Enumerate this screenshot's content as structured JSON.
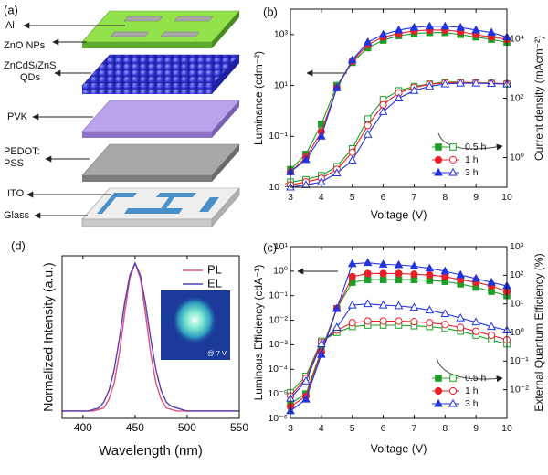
{
  "diagram": {
    "panel_label": "(a)",
    "layers": [
      [
        "Al"
      ],
      [
        "ZnO NPs"
      ],
      [
        "ZnCdS/ZnS",
        "QDs"
      ],
      [
        "PVK"
      ],
      [
        "PEDOT:",
        "PSS"
      ],
      [
        "ITO"
      ],
      [
        "Glass"
      ]
    ]
  },
  "chart_data": [
    {
      "type": "line",
      "panel_label": "(b)",
      "xlabel": "Voltage (V)",
      "ylabel": "Luminance (cdm⁻²)",
      "y2label": "Current density (mAcm⁻²)",
      "x": [
        3,
        3.5,
        4,
        4.5,
        5,
        5.5,
        6,
        6.5,
        7,
        7.5,
        8,
        8.5,
        9,
        9.5,
        10
      ],
      "xlim": [
        3,
        10
      ],
      "xticks": [
        3,
        4,
        5,
        6,
        7,
        8,
        9,
        10
      ],
      "yscale": "log",
      "ylim": [
        0.001,
        10000
      ],
      "yticks": [
        {
          "value": 0.001,
          "label": "10⁻³"
        },
        {
          "value": 0.1,
          "label": "10⁻¹"
        },
        {
          "value": 10,
          "label": "10¹"
        },
        {
          "value": 1000,
          "label": "10³"
        }
      ],
      "y2scale": "log",
      "y2lim": [
        0.1,
        100000
      ],
      "y2ticks": [
        {
          "value": 1,
          "label": "10⁰"
        },
        {
          "value": 100,
          "label": "10²"
        },
        {
          "value": 10000,
          "label": "10⁴"
        }
      ],
      "legend": "lower right",
      "series": [
        {
          "name": "0.5 h",
          "color": "#1e9e28",
          "marker": "square",
          "values": [
            0.005,
            0.02,
            0.3,
            10,
            80,
            300,
            600,
            900,
            1100,
            1200,
            1200,
            1000,
            800,
            650,
            500
          ],
          "y2_values": [
            0.15,
            0.18,
            0.25,
            0.5,
            2,
            20,
            90,
            180,
            250,
            300,
            350,
            350,
            330,
            320,
            300
          ]
        },
        {
          "name": "1 h",
          "color": "#e8202a",
          "marker": "circle",
          "values": [
            0.004,
            0.015,
            0.15,
            8,
            90,
            400,
            800,
            1100,
            1400,
            1500,
            1500,
            1300,
            1000,
            800,
            650
          ],
          "y2_values": [
            0.12,
            0.15,
            0.2,
            0.4,
            1.5,
            12,
            60,
            150,
            230,
            290,
            330,
            340,
            330,
            320,
            310
          ]
        },
        {
          "name": "3 h",
          "color": "#2233e0",
          "marker": "triangle",
          "values": [
            0.004,
            0.012,
            0.1,
            8,
            100,
            500,
            1000,
            1500,
            1900,
            2100,
            2100,
            1900,
            1500,
            1200,
            800
          ],
          "y2_values": [
            0.1,
            0.12,
            0.15,
            0.3,
            0.8,
            6,
            35,
            100,
            180,
            250,
            300,
            320,
            320,
            310,
            300
          ]
        }
      ]
    },
    {
      "type": "line",
      "panel_label": "(c)",
      "xlabel": "Voltage (V)",
      "ylabel": "Luminous Efficiency (cdA⁻¹)",
      "y2label": "External Quantum Efficiency (%)",
      "x": [
        3,
        3.5,
        4,
        4.5,
        5,
        5.5,
        6,
        6.5,
        7,
        7.5,
        8,
        8.5,
        9,
        9.5,
        10
      ],
      "xlim": [
        3,
        10
      ],
      "xticks": [
        3,
        4,
        5,
        6,
        7,
        8,
        9,
        10
      ],
      "yscale": "log",
      "ylim": [
        1e-06,
        10
      ],
      "yticks": [
        {
          "value": 1e-06,
          "label": "10⁻⁶"
        },
        {
          "value": 1e-05,
          "label": "10⁻⁵"
        },
        {
          "value": 0.0001,
          "label": "10⁻⁴"
        },
        {
          "value": 0.001,
          "label": "10⁻³"
        },
        {
          "value": 0.01,
          "label": "10⁻²"
        },
        {
          "value": 0.1,
          "label": "10⁻¹"
        },
        {
          "value": 1,
          "label": "10⁰"
        },
        {
          "value": 10,
          "label": "10¹"
        }
      ],
      "y2scale": "log",
      "y2lim": [
        0.001,
        1000
      ],
      "y2ticks": [
        {
          "value": 0.01,
          "label": "10⁻²"
        },
        {
          "value": 0.1,
          "label": "10⁻¹"
        },
        {
          "value": 1,
          "label": "10⁰"
        },
        {
          "value": 10,
          "label": "10¹"
        },
        {
          "value": 100,
          "label": "10²"
        },
        {
          "value": 1000,
          "label": "10³"
        }
      ],
      "legend": "lower right",
      "series": [
        {
          "name": "0.5 h",
          "color": "#1e9e28",
          "marker": "square",
          "values": [
            4e-06,
            1e-05,
            0.0006,
            0.03,
            0.35,
            0.45,
            0.45,
            0.45,
            0.45,
            0.42,
            0.38,
            0.3,
            0.22,
            0.15,
            0.1
          ],
          "y2_values": [
            0.008,
            0.03,
            0.5,
            1,
            1.6,
            1.8,
            1.8,
            1.8,
            1.7,
            1.6,
            1.4,
            1.1,
            0.8,
            0.55,
            0.4
          ]
        },
        {
          "name": "1 h",
          "color": "#e8202a",
          "marker": "circle",
          "values": [
            3e-06,
            8e-06,
            0.0005,
            0.03,
            0.6,
            0.8,
            0.8,
            0.8,
            0.75,
            0.7,
            0.6,
            0.45,
            0.35,
            0.25,
            0.15
          ],
          "y2_values": [
            0.006,
            0.025,
            0.45,
            1.2,
            2.2,
            2.5,
            2.5,
            2.5,
            2.4,
            2.2,
            1.9,
            1.5,
            1.1,
            0.8,
            0.55
          ]
        },
        {
          "name": "3 h",
          "color": "#2233e0",
          "marker": "triangle",
          "values": [
            2e-06,
            6e-06,
            0.0004,
            0.03,
            2,
            2.2,
            1.9,
            1.8,
            1.6,
            1.3,
            1,
            0.7,
            0.5,
            0.35,
            0.25
          ],
          "y2_values": [
            0.005,
            0.02,
            0.4,
            1.5,
            9,
            10,
            9,
            8.5,
            7.5,
            6,
            4.5,
            3.2,
            2.3,
            1.6,
            1.2
          ]
        }
      ]
    },
    {
      "type": "line",
      "panel_label": "(d)",
      "xlabel": "Wavelength (nm)",
      "ylabel": "Normalized Intensity (a.u.)",
      "inset_label": "@ 7 V",
      "x": [
        380,
        385,
        390,
        395,
        400,
        405,
        410,
        415,
        420,
        425,
        430,
        435,
        440,
        445,
        450,
        455,
        460,
        465,
        470,
        475,
        480,
        485,
        490,
        495,
        500,
        505,
        510,
        515,
        520,
        525,
        530,
        535,
        540,
        545,
        550
      ],
      "xlim": [
        380,
        550
      ],
      "xticks": [
        400,
        450,
        500,
        550
      ],
      "ylim": [
        -0.05,
        1.05
      ],
      "legend": "upper right",
      "series": [
        {
          "name": "PL",
          "color": "#e0507a",
          "values": [
            0,
            0,
            0,
            0,
            0,
            0,
            0,
            0.01,
            0.02,
            0.08,
            0.19,
            0.39,
            0.66,
            0.9,
            1,
            0.9,
            0.66,
            0.39,
            0.19,
            0.08,
            0.02,
            0.01,
            0,
            0,
            0,
            0,
            0,
            0,
            0,
            0,
            0,
            0,
            0,
            0,
            0
          ]
        },
        {
          "name": "EL",
          "color": "#5a3fb0",
          "values": [
            0,
            0,
            0,
            0,
            0,
            0,
            0.01,
            0.02,
            0.06,
            0.14,
            0.28,
            0.49,
            0.73,
            0.92,
            1,
            0.92,
            0.73,
            0.49,
            0.28,
            0.14,
            0.06,
            0.03,
            0.02,
            0.01,
            0,
            0,
            0,
            0,
            0,
            0,
            0,
            0,
            0,
            0,
            0
          ]
        }
      ]
    }
  ]
}
